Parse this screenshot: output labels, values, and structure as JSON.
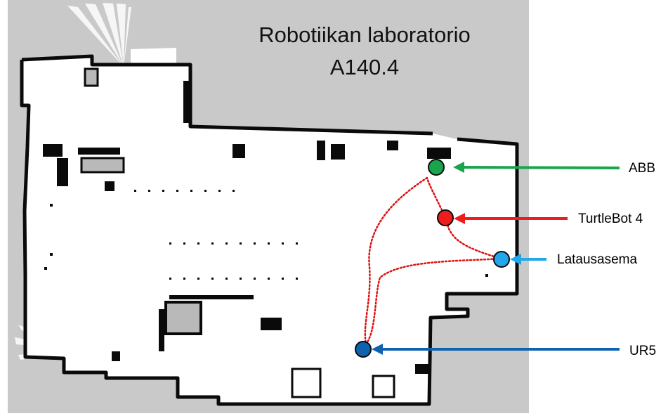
{
  "title": {
    "line1": "Robotiikan laboratorio",
    "line2": "A140.4"
  },
  "markers": [
    {
      "id": "abb",
      "label": "ABB",
      "color": "#19a54b"
    },
    {
      "id": "turtlebot",
      "label": "TurtleBot 4",
      "color": "#ee1c1c"
    },
    {
      "id": "latausasema",
      "label": "Latausasema",
      "color": "#22a8ea"
    },
    {
      "id": "ur5",
      "label": "UR5",
      "color": "#0e62b0"
    }
  ],
  "route": {
    "color": "#dd1111",
    "style": "dotted"
  },
  "map": {
    "background": "#c9c9c9",
    "free_space": "#ffffff",
    "obstacle": "#0a0a0a"
  }
}
